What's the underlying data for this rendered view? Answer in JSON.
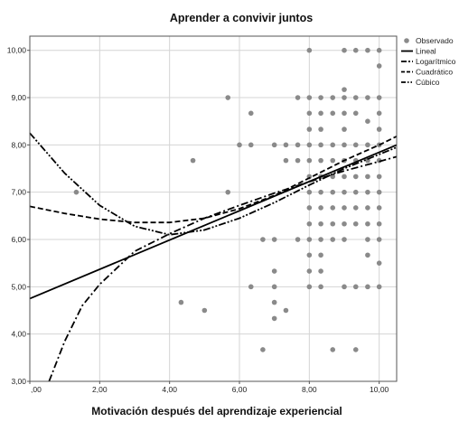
{
  "chart_data": {
    "type": "scatter",
    "title": "Aprender a convivir juntos",
    "xlabel": "Motivación después del aprendizaje experiencial",
    "ylabel": "",
    "xlim": [
      0,
      10.5
    ],
    "ylim": [
      3,
      10.3
    ],
    "x_ticks": [
      0,
      2,
      4,
      6,
      8,
      10
    ],
    "x_tick_labels": [
      ",00",
      "2,00",
      "4,00",
      "6,00",
      "8,00",
      "10,00"
    ],
    "y_ticks": [
      3,
      4,
      5,
      6,
      7,
      8,
      9,
      10
    ],
    "y_tick_labels": [
      "3,00",
      "4,00",
      "5,00",
      "6,00",
      "7,00",
      "8,00",
      "9,00",
      "10,00"
    ],
    "grid": true,
    "legend_position": "top-right",
    "legend": [
      {
        "label": "Observado",
        "style": "marker"
      },
      {
        "label": "Lineal",
        "style": "solid"
      },
      {
        "label": "Logarítmico",
        "style": "dashdot"
      },
      {
        "label": "Cuadrático",
        "style": "dashed"
      },
      {
        "label": "Cúbico",
        "style": "dashdotdot"
      }
    ],
    "points": [
      [
        1.33,
        7.0
      ],
      [
        4.33,
        4.67
      ],
      [
        4.67,
        7.67
      ],
      [
        5.0,
        4.5
      ],
      [
        5.67,
        9.0
      ],
      [
        5.67,
        7.0
      ],
      [
        6.0,
        8.0
      ],
      [
        6.33,
        8.67
      ],
      [
        6.33,
        8.0
      ],
      [
        6.33,
        5.0
      ],
      [
        6.67,
        6.0
      ],
      [
        6.67,
        3.67
      ],
      [
        7.0,
        6.0
      ],
      [
        7.0,
        5.33
      ],
      [
        7.0,
        5.0
      ],
      [
        7.0,
        4.67
      ],
      [
        7.0,
        4.33
      ],
      [
        7.0,
        8.0
      ],
      [
        7.33,
        8.0
      ],
      [
        7.33,
        7.67
      ],
      [
        7.33,
        4.5
      ],
      [
        7.67,
        9.0
      ],
      [
        7.67,
        8.0
      ],
      [
        7.67,
        7.67
      ],
      [
        7.67,
        6.0
      ],
      [
        8.0,
        10.0
      ],
      [
        8.0,
        9.0
      ],
      [
        8.0,
        8.67
      ],
      [
        8.0,
        8.33
      ],
      [
        8.0,
        8.0
      ],
      [
        8.0,
        7.67
      ],
      [
        8.0,
        7.33
      ],
      [
        8.0,
        7.0
      ],
      [
        8.0,
        6.67
      ],
      [
        8.0,
        6.33
      ],
      [
        8.0,
        6.0
      ],
      [
        8.0,
        5.67
      ],
      [
        8.0,
        5.33
      ],
      [
        8.0,
        5.0
      ],
      [
        8.33,
        9.0
      ],
      [
        8.33,
        8.67
      ],
      [
        8.33,
        8.33
      ],
      [
        8.33,
        8.0
      ],
      [
        8.33,
        7.67
      ],
      [
        8.33,
        7.33
      ],
      [
        8.33,
        7.0
      ],
      [
        8.33,
        6.67
      ],
      [
        8.33,
        6.33
      ],
      [
        8.33,
        6.0
      ],
      [
        8.33,
        5.67
      ],
      [
        8.33,
        5.33
      ],
      [
        8.33,
        5.0
      ],
      [
        8.67,
        9.0
      ],
      [
        8.67,
        8.67
      ],
      [
        8.67,
        8.0
      ],
      [
        8.67,
        7.67
      ],
      [
        8.67,
        7.33
      ],
      [
        8.67,
        7.0
      ],
      [
        8.67,
        6.67
      ],
      [
        8.67,
        6.33
      ],
      [
        8.67,
        6.0
      ],
      [
        8.67,
        3.67
      ],
      [
        9.0,
        10.0
      ],
      [
        9.0,
        9.0
      ],
      [
        9.0,
        8.67
      ],
      [
        9.0,
        8.33
      ],
      [
        9.0,
        8.0
      ],
      [
        9.0,
        7.67
      ],
      [
        9.0,
        7.33
      ],
      [
        9.0,
        7.0
      ],
      [
        9.0,
        6.67
      ],
      [
        9.0,
        6.33
      ],
      [
        9.0,
        6.0
      ],
      [
        9.0,
        5.0
      ],
      [
        9.0,
        9.17
      ],
      [
        9.33,
        10.0
      ],
      [
        9.33,
        9.0
      ],
      [
        9.33,
        8.67
      ],
      [
        9.33,
        8.0
      ],
      [
        9.33,
        7.67
      ],
      [
        9.33,
        7.33
      ],
      [
        9.33,
        7.0
      ],
      [
        9.33,
        6.67
      ],
      [
        9.33,
        6.33
      ],
      [
        9.33,
        5.0
      ],
      [
        9.33,
        3.67
      ],
      [
        9.67,
        10.0
      ],
      [
        9.67,
        9.0
      ],
      [
        9.67,
        8.5
      ],
      [
        9.67,
        8.0
      ],
      [
        9.67,
        7.67
      ],
      [
        9.67,
        7.33
      ],
      [
        9.67,
        7.0
      ],
      [
        9.67,
        6.67
      ],
      [
        9.67,
        6.33
      ],
      [
        9.67,
        6.0
      ],
      [
        9.67,
        5.67
      ],
      [
        9.67,
        5.0
      ],
      [
        10.0,
        10.0
      ],
      [
        10.0,
        9.67
      ],
      [
        10.0,
        9.0
      ],
      [
        10.0,
        8.67
      ],
      [
        10.0,
        8.33
      ],
      [
        10.0,
        8.0
      ],
      [
        10.0,
        7.67
      ],
      [
        10.0,
        7.33
      ],
      [
        10.0,
        7.0
      ],
      [
        10.0,
        6.67
      ],
      [
        10.0,
        6.33
      ],
      [
        10.0,
        6.0
      ],
      [
        10.0,
        5.5
      ],
      [
        10.0,
        5.0
      ]
    ],
    "curves": [
      {
        "name": "Lineal",
        "points": [
          [
            0,
            4.75
          ],
          [
            10.5,
            8.0
          ]
        ]
      },
      {
        "name": "Logarítmico",
        "points": [
          [
            0.55,
            3.0
          ],
          [
            1.0,
            3.85
          ],
          [
            1.5,
            4.6
          ],
          [
            2.0,
            5.05
          ],
          [
            3.0,
            5.75
          ],
          [
            4.0,
            6.12
          ],
          [
            5.0,
            6.45
          ],
          [
            6.0,
            6.72
          ],
          [
            7.0,
            6.98
          ],
          [
            8.0,
            7.22
          ],
          [
            9.0,
            7.45
          ],
          [
            10.0,
            7.65
          ],
          [
            10.5,
            7.75
          ]
        ]
      },
      {
        "name": "Cuadrático",
        "points": [
          [
            0,
            6.7
          ],
          [
            1.0,
            6.55
          ],
          [
            2.0,
            6.43
          ],
          [
            3.0,
            6.36
          ],
          [
            4.0,
            6.36
          ],
          [
            5.0,
            6.45
          ],
          [
            6.0,
            6.65
          ],
          [
            7.0,
            6.93
          ],
          [
            8.0,
            7.3
          ],
          [
            9.0,
            7.67
          ],
          [
            10.0,
            8.0
          ],
          [
            10.5,
            8.18
          ]
        ]
      },
      {
        "name": "Cúbico",
        "points": [
          [
            0,
            8.25
          ],
          [
            1.0,
            7.4
          ],
          [
            2.0,
            6.72
          ],
          [
            3.0,
            6.28
          ],
          [
            4.0,
            6.1
          ],
          [
            5.0,
            6.2
          ],
          [
            6.0,
            6.45
          ],
          [
            7.0,
            6.78
          ],
          [
            8.0,
            7.15
          ],
          [
            9.0,
            7.5
          ],
          [
            10.0,
            7.8
          ],
          [
            10.5,
            7.95
          ]
        ]
      }
    ]
  }
}
